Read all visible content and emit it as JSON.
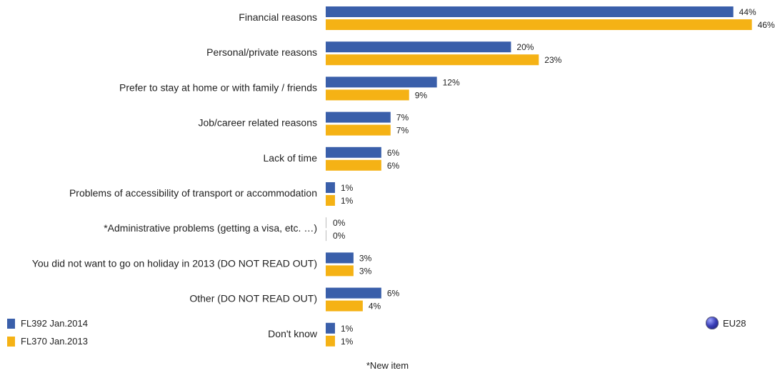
{
  "chart_data": {
    "type": "bar",
    "orientation": "horizontal",
    "categories": [
      "Financial reasons",
      "Personal/private reasons",
      "Prefer to stay at home or with family / friends",
      "Job/career related reasons",
      "Lack of time",
      "Problems of accessibility of transport or accommodation",
      "*Administrative problems (getting a visa, etc. …)",
      "You did not want to go on holiday in 2013 (DO NOT READ OUT)",
      "Other (DO NOT READ OUT)",
      "Don't know"
    ],
    "series": [
      {
        "name": "FL392 Jan.2014",
        "color": "#3a5faa",
        "values": [
          44,
          20,
          12,
          7,
          6,
          1,
          0,
          3,
          6,
          1
        ]
      },
      {
        "name": "FL370 Jan.2013",
        "color": "#f5b215",
        "values": [
          46,
          23,
          9,
          7,
          6,
          1,
          0,
          3,
          4,
          1
        ]
      }
    ],
    "value_suffix": "%",
    "legend_position": "bottom-left",
    "grid": false
  },
  "badge": {
    "label": "EU28",
    "icon": "globe-icon"
  },
  "footnote": "*New item"
}
